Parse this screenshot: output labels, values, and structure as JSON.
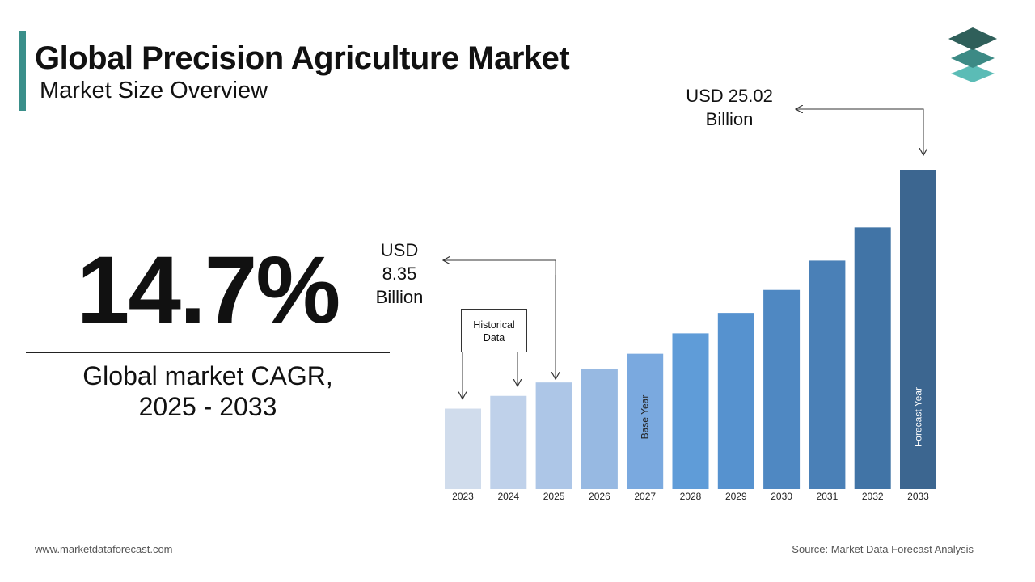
{
  "header": {
    "title": "Global Precision Agriculture Market",
    "subtitle": "Market Size Overview"
  },
  "colors": {
    "accent": "#3a8f8a",
    "logo_top": "#2f5f5a",
    "logo_mid": "#3c8a85",
    "logo_bottom": "#5bbcb6"
  },
  "cagr": {
    "value": "14.7%",
    "label_line1": "Global market CAGR,",
    "label_line2": "2025 - 2033"
  },
  "callouts": {
    "end": {
      "line1": "USD 25.02",
      "line2": "Billion"
    },
    "start": {
      "line1": "USD",
      "line2": "8.35",
      "line3": "Billion"
    },
    "historical": {
      "line1": "Historical",
      "line2": "Data"
    }
  },
  "chart_data": {
    "type": "bar",
    "categories": [
      "2023",
      "2024",
      "2025",
      "2026",
      "2027",
      "2028",
      "2029",
      "2030",
      "2031",
      "2032",
      "2033"
    ],
    "values": [
      6.3,
      7.3,
      8.35,
      9.4,
      10.6,
      12.2,
      13.8,
      15.6,
      17.9,
      20.5,
      25.02
    ],
    "colors": [
      "#d0dcec",
      "#bfd1ea",
      "#adc6e7",
      "#97b9e2",
      "#7aa9df",
      "#5f9cd8",
      "#5692cf",
      "#4f88c2",
      "#4a80b7",
      "#4174a6",
      "#3c6690"
    ],
    "bar_labels": {
      "2027": "Base Year",
      "2033": "Forecast Year"
    },
    "title": "",
    "xlabel": "",
    "ylabel": "",
    "grid": false
  },
  "footer": {
    "website": "www.marketdataforecast.com",
    "source": "Source: Market Data Forecast Analysis"
  }
}
